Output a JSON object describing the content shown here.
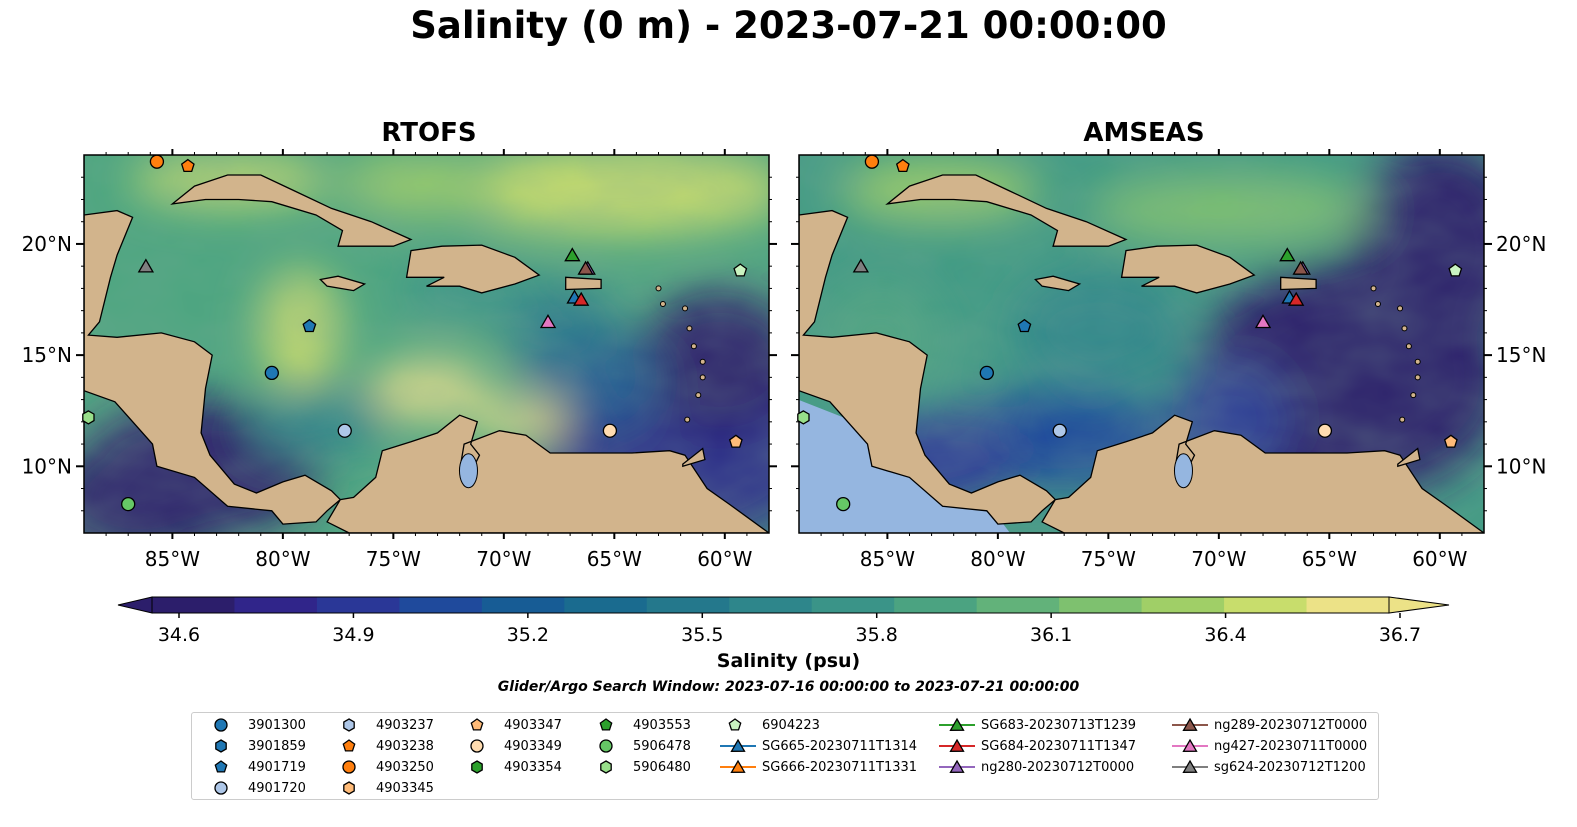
{
  "figure": {
    "title": "Salinity (0 m) - 2023-07-21 00:00:00",
    "panel_titles": [
      "RTOFS",
      "AMSEAS"
    ],
    "colorbar_label": "Salinity (psu)",
    "subtitle": "Glider/Argo Search Window: 2023-07-16 00:00:00 to 2023-07-21 00:00:00"
  },
  "chart_data": {
    "type": "heatmap",
    "variable": "Salinity (0 m)",
    "colorbar": {
      "ticks": [
        34.6,
        34.9,
        35.2,
        35.5,
        35.8,
        36.1,
        36.4,
        36.7
      ],
      "tick_labels": [
        "34.6",
        "34.9",
        "35.2",
        "35.5",
        "35.8",
        "36.1",
        "36.4",
        "36.7"
      ],
      "range": [
        34.6,
        36.7
      ],
      "extend": "both",
      "colormap": [
        "#2c1e6b",
        "#30258a",
        "#2a3797",
        "#1f4a9c",
        "#175c95",
        "#1a6b8f",
        "#24788c",
        "#2e868b",
        "#3a9488",
        "#4ba381",
        "#62b27a",
        "#7ec16f",
        "#a0cf67",
        "#c8dd6c",
        "#ece287"
      ]
    },
    "x_axis": {
      "ticks": [
        -85,
        -80,
        -75,
        -70,
        -65,
        -60
      ],
      "tick_labels": [
        "85°W",
        "80°W",
        "75°W",
        "70°W",
        "65°W",
        "60°W"
      ],
      "range": [
        -89,
        -58
      ]
    },
    "y_axis": {
      "ticks": [
        10,
        15,
        20
      ],
      "tick_labels": [
        "10°N",
        "15°N",
        "20°N"
      ],
      "range": [
        7,
        24
      ]
    },
    "land_color": "#d2b48c",
    "observations": [
      {
        "id": "3901300",
        "kind": "argo",
        "marker": "circle",
        "color": "#1f77b4"
      },
      {
        "id": "3901859",
        "kind": "argo",
        "marker": "hexagon",
        "color": "#1f77b4"
      },
      {
        "id": "4901719",
        "kind": "argo",
        "marker": "pentagon",
        "color": "#1f77b4",
        "lon": -78.8,
        "lat": 16.3
      },
      {
        "id": "4901720",
        "kind": "argo",
        "marker": "circle",
        "color": "#aec7e8",
        "lon": -77.2,
        "lat": 11.6
      },
      {
        "id": "4903237",
        "kind": "argo",
        "marker": "hexagon",
        "color": "#aec7e8"
      },
      {
        "id": "4903238",
        "kind": "argo",
        "marker": "pentagon",
        "color": "#ff7f0e",
        "lon": -84.3,
        "lat": 23.5
      },
      {
        "id": "4903250",
        "kind": "argo",
        "marker": "circle",
        "color": "#ff7f0e",
        "lon": -85.7,
        "lat": 23.7
      },
      {
        "id": "4903345",
        "kind": "argo",
        "marker": "hexagon",
        "color": "#ffbb78"
      },
      {
        "id": "4903347",
        "kind": "argo",
        "marker": "pentagon",
        "color": "#ffbb78",
        "lon": -59.5,
        "lat": 11.1
      },
      {
        "id": "4903349",
        "kind": "argo",
        "marker": "circle",
        "color": "#ffdcb0",
        "lon": -65.2,
        "lat": 11.6
      },
      {
        "id": "4903354",
        "kind": "argo",
        "marker": "hexagon",
        "color": "#2ca02c"
      },
      {
        "id": "4903553",
        "kind": "argo",
        "marker": "pentagon",
        "color": "#2ca02c"
      },
      {
        "id": "5906478",
        "kind": "argo",
        "marker": "circle",
        "color": "#66c766",
        "lon": -87.0,
        "lat": 8.3
      },
      {
        "id": "5906480",
        "kind": "argo",
        "marker": "hexagon",
        "color": "#98df8a",
        "lon": -88.8,
        "lat": 12.2
      },
      {
        "id": "6904223",
        "kind": "argo",
        "marker": "pentagon",
        "color": "#c9f3c0",
        "lon": -59.3,
        "lat": 18.8
      },
      {
        "id": "SG665-20230711T1314",
        "kind": "glider",
        "marker": "triangle",
        "color": "#1f77b4",
        "lon": -66.8,
        "lat": 17.6
      },
      {
        "id": "SG666-20230711T1331",
        "kind": "glider",
        "marker": "triangle",
        "color": "#ff7f0e"
      },
      {
        "id": "SG683-20230713T1239",
        "kind": "glider",
        "marker": "triangle",
        "color": "#2ca02c",
        "lon": -66.9,
        "lat": 19.5
      },
      {
        "id": "SG684-20230711T1347",
        "kind": "glider",
        "marker": "triangle",
        "color": "#d62728",
        "lon": -66.5,
        "lat": 17.5
      },
      {
        "id": "ng280-20230712T0000",
        "kind": "glider",
        "marker": "triangle",
        "color": "#9467bd",
        "lon": -66.2,
        "lat": 18.9
      },
      {
        "id": "ng289-20230712T0000",
        "kind": "glider",
        "marker": "triangle",
        "color": "#8c564b",
        "lon": -66.3,
        "lat": 18.9
      },
      {
        "id": "ng427-20230711T0000",
        "kind": "glider",
        "marker": "triangle",
        "color": "#e377c2",
        "lon": -68.0,
        "lat": 16.5
      },
      {
        "id": "sg624-20230712T1200",
        "kind": "glider",
        "marker": "triangle",
        "color": "#7f7f7f",
        "lon": -86.2,
        "lat": 19.0
      }
    ],
    "extra_markers": [
      {
        "marker": "circle",
        "color": "#1f77b4",
        "lon": -80.5,
        "lat": 14.2
      }
    ]
  }
}
